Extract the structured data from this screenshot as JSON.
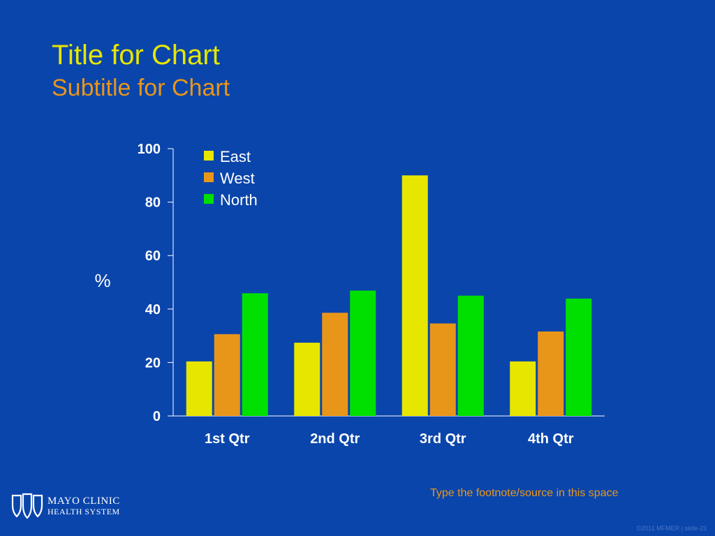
{
  "slide": {
    "footnote": "Type the footnote/source in this space",
    "copyright": "©2011 MFMER  |  slide-23"
  },
  "logo": {
    "icon": "mayo-clinic-shields-icon",
    "line1": "MAYO CLINIC",
    "line2": "HEALTH SYSTEM"
  },
  "colors": {
    "background": "#0a45ab",
    "title": "#e6e600",
    "subtitle": "#e8961a",
    "axis": "#ffffff"
  },
  "chart_data": {
    "type": "bar",
    "title": "Title for Chart",
    "subtitle": "Subtitle for Chart",
    "xlabel": "",
    "ylabel": "%",
    "ylim": [
      0,
      100
    ],
    "yticks": [
      0,
      20,
      40,
      60,
      80,
      100
    ],
    "grid": false,
    "legend_position": "top-left",
    "categories": [
      "1st Qtr",
      "2nd Qtr",
      "3rd Qtr",
      "4th Qtr"
    ],
    "series": [
      {
        "name": "East",
        "color": "#e6e600",
        "values": [
          20.4,
          27.4,
          90,
          20.4
        ]
      },
      {
        "name": "West",
        "color": "#e8961a",
        "values": [
          30.6,
          38.6,
          34.6,
          31.6
        ]
      },
      {
        "name": "North",
        "color": "#00e000",
        "values": [
          45.9,
          46.9,
          45,
          43.9
        ]
      }
    ]
  }
}
